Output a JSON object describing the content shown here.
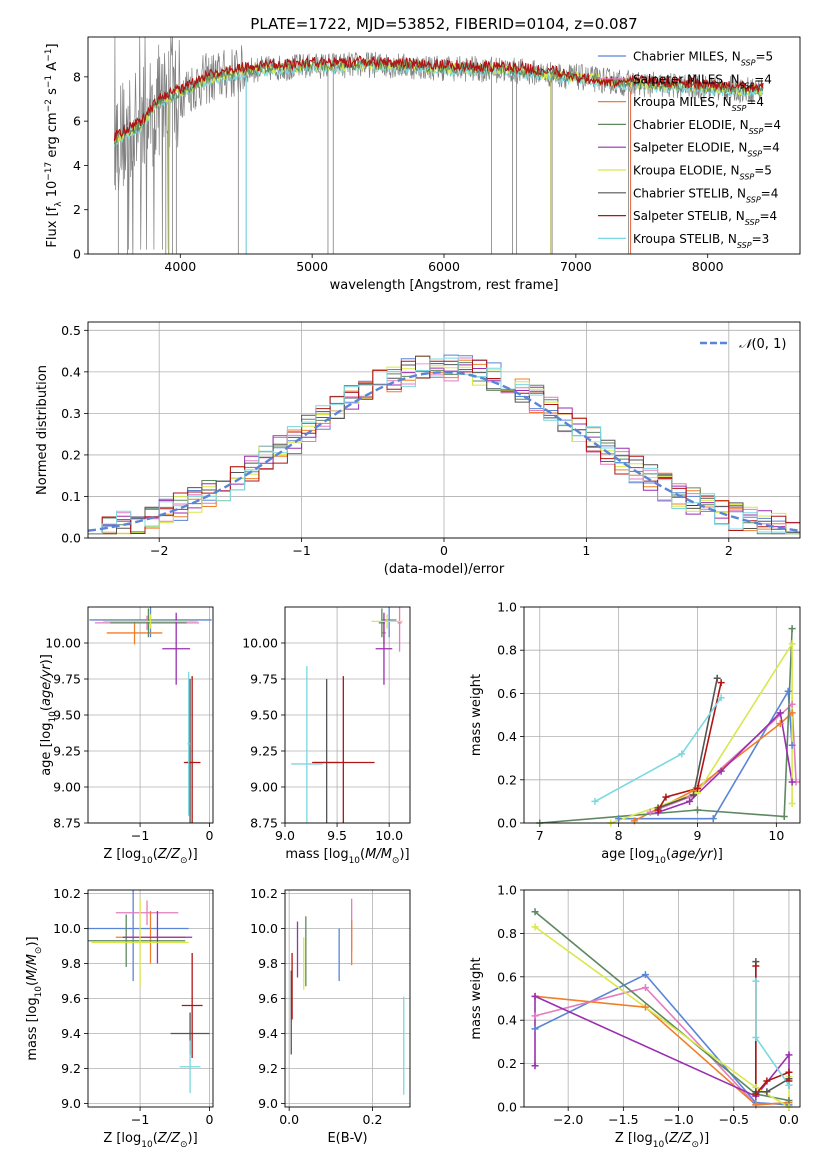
{
  "figure": {
    "title": "PLATE=1722, MJD=53852, FIBERID=0104, z=0.087"
  },
  "models": [
    {
      "imf": "Chabrier",
      "lib": "MILES",
      "n": "5",
      "color": "#5a85d6"
    },
    {
      "imf": "Salpeter",
      "lib": "MILES",
      "n": "4",
      "color": "#e37cc0"
    },
    {
      "imf": "Kroupa",
      "lib": "MILES",
      "n": "4",
      "color": "#f07f2b"
    },
    {
      "imf": "Chabrier",
      "lib": "ELODIE",
      "n": "4",
      "color": "#5e8860"
    },
    {
      "imf": "Salpeter",
      "lib": "ELODIE",
      "n": "4",
      "color": "#9a2fb0"
    },
    {
      "imf": "Kroupa",
      "lib": "ELODIE",
      "n": "5",
      "color": "#d8e84a"
    },
    {
      "imf": "Chabrier",
      "lib": "STELIB",
      "n": "4",
      "color": "#555555"
    },
    {
      "imf": "Salpeter",
      "lib": "STELIB",
      "n": "4",
      "color": "#b01515"
    },
    {
      "imf": "Kroupa",
      "lib": "STELIB",
      "n": "3",
      "color": "#7ad8e0"
    }
  ],
  "chart_data": [
    {
      "id": "spectrum",
      "type": "line",
      "xlabel": "wavelength [Angstrom, rest frame]",
      "ylabel": "Flux [f_λ 10^-17 erg cm^-2 s^-1 A^-1]",
      "xlim": [
        3300,
        8700
      ],
      "ylim": [
        0,
        9.8
      ],
      "xticks": [
        4000,
        5000,
        6000,
        7000,
        8000
      ],
      "yticks": [
        0,
        2,
        4,
        6,
        8
      ],
      "continuum": [
        [
          3500,
          5.2
        ],
        [
          3700,
          5.8
        ],
        [
          3850,
          7.0
        ],
        [
          4000,
          7.3
        ],
        [
          4200,
          7.9
        ],
        [
          4500,
          8.3
        ],
        [
          5000,
          8.5
        ],
        [
          5500,
          8.55
        ],
        [
          6000,
          8.4
        ],
        [
          6500,
          8.3
        ],
        [
          7000,
          8.0
        ],
        [
          7400,
          7.7
        ],
        [
          8000,
          7.5
        ],
        [
          8400,
          7.4
        ]
      ],
      "data_color": "#808080",
      "deep_lines": [
        3530,
        3600,
        3640,
        3890,
        3910,
        3940,
        3970,
        4440,
        4500,
        5120,
        5160,
        6360,
        6520,
        6550,
        6820,
        7400
      ]
    },
    {
      "id": "residuals",
      "type": "step",
      "xlabel": "(data-model)/error",
      "ylabel": "Normed distribution",
      "xlim": [
        -2.5,
        2.5
      ],
      "ylim": [
        0,
        0.52
      ],
      "xticks": [
        -2,
        -1,
        0,
        1,
        2
      ],
      "yticks": [
        0.0,
        0.1,
        0.2,
        0.3,
        0.4,
        0.5
      ],
      "bin_width": 0.1,
      "normal": {
        "name": "N(0,1)",
        "mu": 0,
        "sigma": 1,
        "color": "#5a85d6"
      }
    },
    {
      "id": "age_vs_Z",
      "type": "errorbar",
      "xlabel": "Z [log10(Z/Z⊙)]",
      "ylabel": "age [log10(age/yr)]",
      "xlim": [
        -1.75,
        0.05
      ],
      "ylim": [
        8.75,
        10.25
      ],
      "xticks": [
        -1,
        0
      ],
      "yticks": [
        8.75,
        9.0,
        9.25,
        9.5,
        9.75,
        10.0
      ],
      "points": [
        {
          "x": -0.85,
          "y": 10.16,
          "xerr": 0.88,
          "yerr": 0.12,
          "c": "#5a85d6"
        },
        {
          "x": -0.9,
          "y": 10.14,
          "xerr": 0.75,
          "yerr": 0.05,
          "c": "#e37cc0"
        },
        {
          "x": -1.08,
          "y": 10.07,
          "xerr": 0.4,
          "yerr": 0.08,
          "c": "#f07f2b"
        },
        {
          "x": -0.88,
          "y": 10.14,
          "xerr": 0.55,
          "yerr": 0.1,
          "c": "#5e8860"
        },
        {
          "x": -0.48,
          "y": 9.96,
          "xerr": 0.2,
          "yerr": 0.25,
          "c": "#9a2fb0"
        },
        {
          "x": -0.85,
          "y": 10.15,
          "xerr": 0.68,
          "yerr": 0.05,
          "c": "#d8e84a"
        },
        {
          "x": -0.28,
          "y": 9.17,
          "xerr": 0.05,
          "yerr": 0.58,
          "c": "#555555"
        },
        {
          "x": -0.25,
          "y": 9.17,
          "xerr": 0.12,
          "yerr": 0.6,
          "c": "#b01515"
        },
        {
          "x": -0.3,
          "y": 9.3,
          "xerr": 0.02,
          "yerr": 0.5,
          "c": "#7ad8e0"
        }
      ]
    },
    {
      "id": "age_vs_mass",
      "type": "errorbar",
      "xlabel": "mass [log10(M/M⊙)]",
      "ylabel": "",
      "xlim": [
        9.0,
        10.2
      ],
      "ylim": [
        8.75,
        10.25
      ],
      "xticks": [
        9.0,
        9.5,
        10.0
      ],
      "yticks": [
        8.75,
        9.0,
        9.25,
        9.5,
        9.75,
        10.0
      ],
      "points": [
        {
          "x": 10.0,
          "y": 10.16,
          "xerr": 0.07,
          "yerr": 0.12,
          "c": "#5a85d6"
        },
        {
          "x": 10.1,
          "y": 10.14,
          "xerr": 0.02,
          "yerr": 0.2,
          "c": "#e37cc0"
        },
        {
          "x": 9.95,
          "y": 10.07,
          "xerr": 0.02,
          "yerr": 0.08,
          "c": "#f07f2b"
        },
        {
          "x": 9.93,
          "y": 10.14,
          "xerr": 0.03,
          "yerr": 0.1,
          "c": "#5e8860"
        },
        {
          "x": 9.95,
          "y": 9.96,
          "xerr": 0.08,
          "yerr": 0.25,
          "c": "#9a2fb0"
        },
        {
          "x": 9.98,
          "y": 10.15,
          "xerr": 0.15,
          "yerr": 0.05,
          "c": "#d8e84a"
        },
        {
          "x": 9.4,
          "y": 9.17,
          "xerr": 0.12,
          "yerr": 0.58,
          "c": "#555555"
        },
        {
          "x": 9.56,
          "y": 9.17,
          "xerr": 0.3,
          "yerr": 0.6,
          "c": "#b01515"
        },
        {
          "x": 9.21,
          "y": 9.16,
          "xerr": 0.15,
          "yerr": 0.68,
          "c": "#7ad8e0"
        }
      ]
    },
    {
      "id": "massweight_vs_age",
      "type": "line",
      "xlabel": "age [log10(age/yr)]",
      "ylabel": "mass weight",
      "xlim": [
        6.8,
        10.3
      ],
      "ylim": [
        0,
        1.0
      ],
      "xticks": [
        7,
        8,
        9,
        10
      ],
      "yticks": [
        0.0,
        0.2,
        0.4,
        0.6,
        0.8,
        1.0
      ],
      "series": [
        {
          "c": "#5a85d6",
          "x": [
            8.0,
            9.2,
            10.15,
            10.2
          ],
          "y": [
            0.02,
            0.02,
            0.61,
            0.36
          ]
        },
        {
          "c": "#e37cc0",
          "x": [
            8.4,
            8.9,
            10.2,
            10.25
          ],
          "y": [
            0.05,
            0.12,
            0.55,
            0.19
          ]
        },
        {
          "c": "#f07f2b",
          "x": [
            8.2,
            8.95,
            10.05,
            10.2
          ],
          "y": [
            0.01,
            0.15,
            0.46,
            0.51
          ]
        },
        {
          "c": "#5e8860",
          "x": [
            7.0,
            9.0,
            10.1,
            10.2
          ],
          "y": [
            0.0,
            0.06,
            0.03,
            0.9
          ]
        },
        {
          "c": "#9a2fb0",
          "x": [
            8.5,
            8.9,
            9.3,
            10.05,
            10.2
          ],
          "y": [
            0.05,
            0.1,
            0.24,
            0.51,
            0.19
          ]
        },
        {
          "c": "#d8e84a",
          "x": [
            7.9,
            9.0,
            10.2,
            10.2
          ],
          "y": [
            0.0,
            0.14,
            0.83,
            0.09
          ]
        },
        {
          "c": "#555555",
          "x": [
            8.5,
            8.95,
            9.25
          ],
          "y": [
            0.07,
            0.13,
            0.67
          ]
        },
        {
          "c": "#b01515",
          "x": [
            8.5,
            8.6,
            9.0,
            9.3
          ],
          "y": [
            0.06,
            0.12,
            0.16,
            0.65
          ]
        },
        {
          "c": "#7ad8e0",
          "x": [
            7.7,
            8.8,
            9.3
          ],
          "y": [
            0.1,
            0.32,
            0.58
          ]
        }
      ]
    },
    {
      "id": "mass_vs_Z",
      "type": "errorbar",
      "xlabel": "Z [log10(Z/Z⊙)]",
      "ylabel": "mass [log10(M/M⊙)]",
      "xlim": [
        -1.75,
        0.05
      ],
      "ylim": [
        8.98,
        10.22
      ],
      "xticks": [
        -1,
        0
      ],
      "yticks": [
        9.0,
        9.2,
        9.4,
        9.6,
        9.8,
        10.0,
        10.2
      ],
      "points": [
        {
          "x": -1.1,
          "y": 10.0,
          "xerr": 0.8,
          "yerr": 0.3,
          "c": "#5a85d6"
        },
        {
          "x": -0.9,
          "y": 10.09,
          "xerr": 0.45,
          "yerr": 0.07,
          "c": "#e37cc0"
        },
        {
          "x": -0.85,
          "y": 9.95,
          "xerr": 0.5,
          "yerr": 0.15,
          "c": "#f07f2b"
        },
        {
          "x": -1.2,
          "y": 9.93,
          "xerr": 0.85,
          "yerr": 0.15,
          "c": "#5e8860"
        },
        {
          "x": -0.75,
          "y": 9.95,
          "xerr": 0.5,
          "yerr": 0.15,
          "c": "#9a2fb0"
        },
        {
          "x": -1.0,
          "y": 9.92,
          "xerr": 0.7,
          "yerr": 0.25,
          "c": "#d8e84a"
        },
        {
          "x": -0.28,
          "y": 9.4,
          "xerr": 0.28,
          "yerr": 0.12,
          "c": "#555555"
        },
        {
          "x": -0.25,
          "y": 9.56,
          "xerr": 0.15,
          "yerr": 0.3,
          "c": "#b01515"
        },
        {
          "x": -0.28,
          "y": 9.21,
          "xerr": 0.15,
          "yerr": 0.15,
          "c": "#7ad8e0"
        }
      ]
    },
    {
      "id": "mass_vs_ebv",
      "type": "errorbar",
      "xlabel": "E(B-V)",
      "ylabel": "",
      "xlim": [
        -0.01,
        0.29
      ],
      "ylim": [
        8.98,
        10.22
      ],
      "xticks": [
        0.0,
        0.2
      ],
      "yticks": [
        9.0,
        9.2,
        9.4,
        9.6,
        9.8,
        10.0,
        10.2
      ],
      "points": [
        {
          "x": 0.12,
          "y": 9.85,
          "yerr": 0.15,
          "c": "#5a85d6"
        },
        {
          "x": 0.15,
          "y": 10.02,
          "yerr": 0.15,
          "c": "#e37cc0"
        },
        {
          "x": 0.15,
          "y": 9.92,
          "yerr": 0.13,
          "c": "#f07f2b"
        },
        {
          "x": 0.04,
          "y": 9.87,
          "yerr": 0.2,
          "c": "#5e8860"
        },
        {
          "x": 0.02,
          "y": 9.88,
          "yerr": 0.16,
          "c": "#9a2fb0"
        },
        {
          "x": 0.035,
          "y": 9.8,
          "yerr": 0.15,
          "c": "#d8e84a"
        },
        {
          "x": 0.005,
          "y": 9.52,
          "yerr": 0.24,
          "c": "#555555"
        },
        {
          "x": 0.007,
          "y": 9.67,
          "yerr": 0.19,
          "c": "#b01515"
        },
        {
          "x": 0.275,
          "y": 9.33,
          "yerr": 0.28,
          "c": "#7ad8e0"
        }
      ]
    },
    {
      "id": "massweight_vs_Z",
      "type": "line",
      "xlabel": "Z [log10(Z/Z⊙)]",
      "ylabel": "mass weight",
      "xlim": [
        -2.4,
        0.1
      ],
      "ylim": [
        0,
        1.0
      ],
      "xticks": [
        -2.0,
        -1.5,
        -1.0,
        -0.5,
        0.0
      ],
      "yticks": [
        0.0,
        0.2,
        0.4,
        0.6,
        0.8,
        1.0
      ],
      "series": [
        {
          "c": "#5a85d6",
          "x": [
            -2.3,
            -1.3,
            -0.3,
            0.0
          ],
          "y": [
            0.36,
            0.61,
            0.02,
            0.01
          ]
        },
        {
          "c": "#e37cc0",
          "x": [
            -2.3,
            -1.3,
            -0.3,
            0.0
          ],
          "y": [
            0.42,
            0.55,
            0.01,
            0.02
          ]
        },
        {
          "c": "#f07f2b",
          "x": [
            -2.3,
            -1.3,
            -0.3,
            0.0
          ],
          "y": [
            0.51,
            0.46,
            0.01,
            0.02
          ]
        },
        {
          "c": "#5e8860",
          "x": [
            -2.3,
            -0.3,
            0.0
          ],
          "y": [
            0.9,
            0.06,
            0.03
          ]
        },
        {
          "c": "#9a2fb0",
          "x": [
            -2.3,
            -2.3,
            -0.3,
            0.0,
            0.0
          ],
          "y": [
            0.19,
            0.51,
            0.05,
            0.24,
            0.1
          ]
        },
        {
          "c": "#d8e84a",
          "x": [
            -2.3,
            -0.3,
            0.0,
            0.0
          ],
          "y": [
            0.83,
            0.09,
            0.0,
            0.14
          ]
        },
        {
          "c": "#555555",
          "x": [
            -0.3,
            -0.3,
            -0.2,
            0.0
          ],
          "y": [
            0.67,
            0.07,
            0.07,
            0.13
          ]
        },
        {
          "c": "#b01515",
          "x": [
            -0.3,
            -0.3,
            -0.2,
            0.0,
            0.0
          ],
          "y": [
            0.65,
            0.06,
            0.12,
            0.16,
            0.12
          ]
        },
        {
          "c": "#7ad8e0",
          "x": [
            -0.3,
            -0.3,
            0.0
          ],
          "y": [
            0.58,
            0.32,
            0.1
          ]
        }
      ]
    }
  ]
}
